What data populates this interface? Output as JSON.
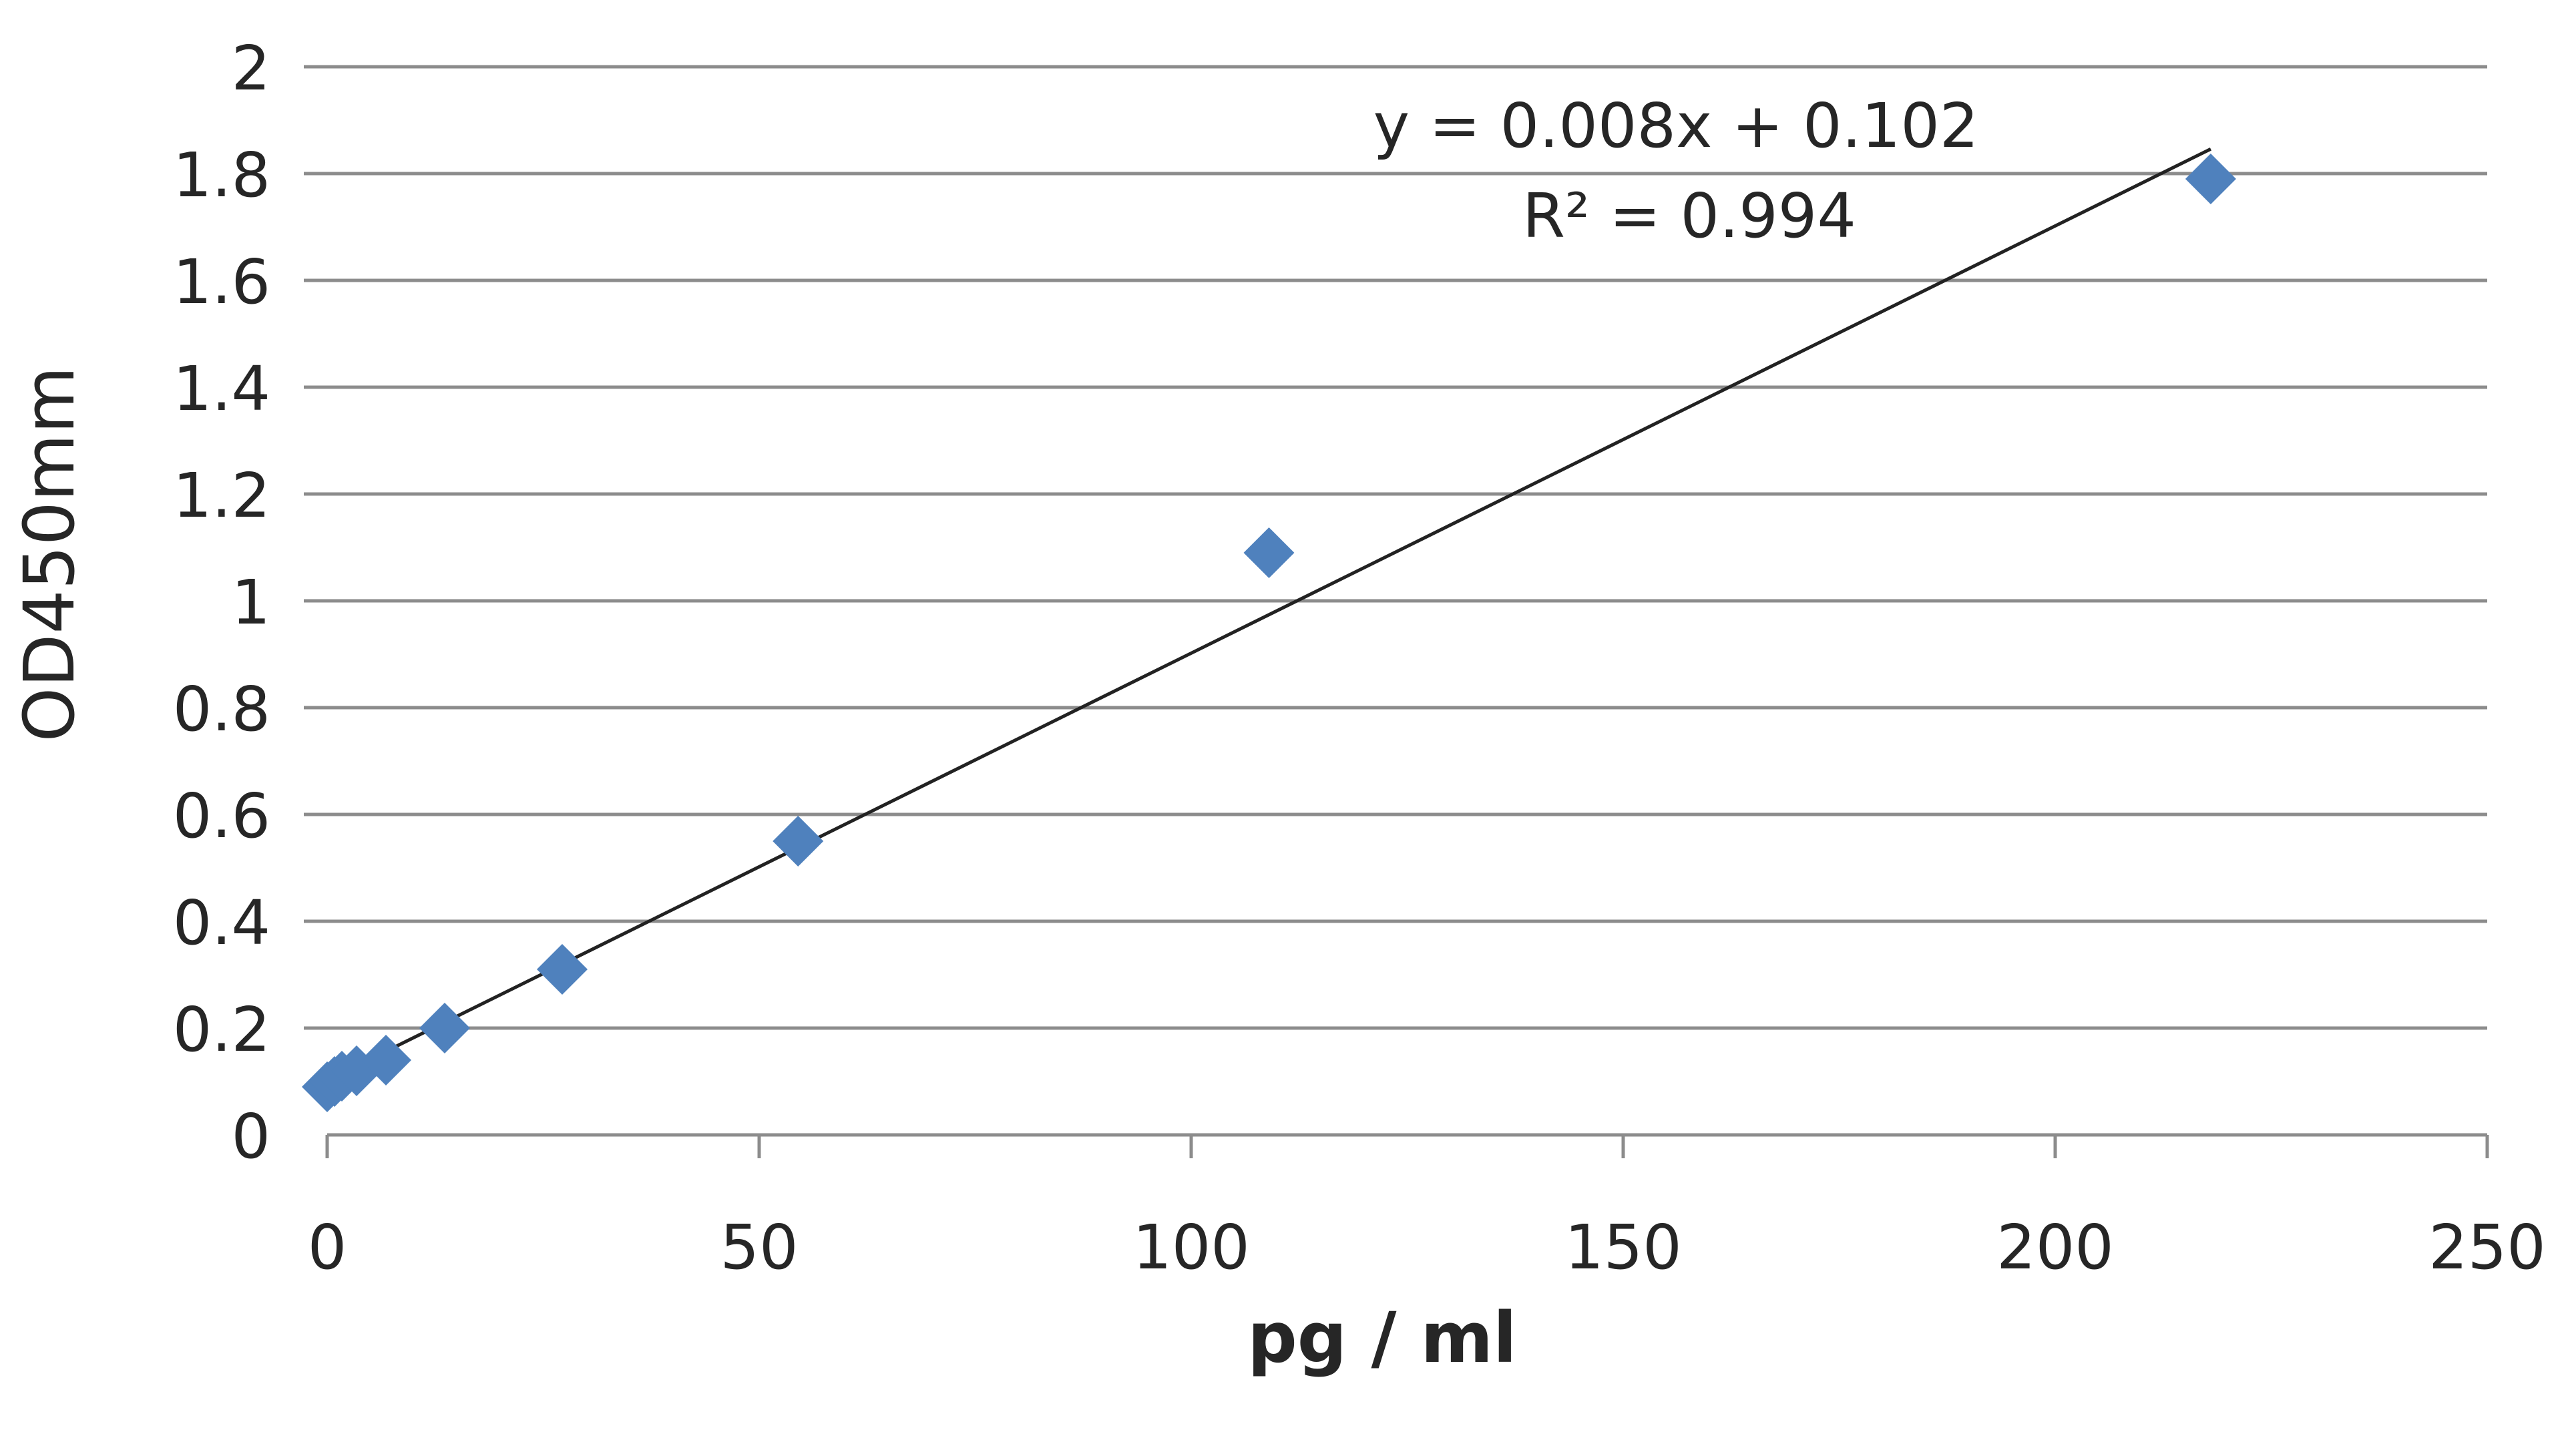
{
  "chart_data": {
    "type": "scatter",
    "title": "",
    "xlabel": "pg / ml",
    "ylabel": "OD450mm",
    "xlim": [
      0,
      250
    ],
    "ylim": [
      0,
      2
    ],
    "x_ticks": [
      0,
      50,
      100,
      150,
      200,
      250
    ],
    "y_ticks": [
      0,
      0.2,
      0.4,
      0.6,
      0.8,
      1,
      1.2,
      1.4,
      1.6,
      1.8,
      2
    ],
    "x_tick_labels": [
      "0",
      "50",
      "100",
      "150",
      "200",
      "250"
    ],
    "y_tick_labels": [
      "0",
      "0.2",
      "0.4",
      "0.6",
      "0.8",
      "1",
      "1.2",
      "1.4",
      "1.6",
      "1.8",
      "2"
    ],
    "grid": "horizontal",
    "legend": "none",
    "series": [
      {
        "marker": "diamond",
        "color": "#4F81BD",
        "points": [
          {
            "x": 0,
            "y": 0.09
          },
          {
            "x": 0.85,
            "y": 0.1
          },
          {
            "x": 1.7,
            "y": 0.11
          },
          {
            "x": 3.4,
            "y": 0.12
          },
          {
            "x": 6.8,
            "y": 0.14
          },
          {
            "x": 13.6,
            "y": 0.2
          },
          {
            "x": 27.2,
            "y": 0.31
          },
          {
            "x": 54.5,
            "y": 0.55
          },
          {
            "x": 109,
            "y": 1.09
          },
          {
            "x": 218,
            "y": 1.79
          }
        ]
      }
    ],
    "trendline": {
      "type": "linear",
      "slope": 0.008,
      "intercept": 0.102,
      "x_range": [
        0,
        218
      ],
      "color": "#222222"
    },
    "annotations": {
      "equation": "y = 0.008x + 0.102",
      "r_squared": "R² = 0.994"
    },
    "colors": {
      "gridline": "#8c8c8c",
      "axis": "#8c8c8c",
      "text": "#262626",
      "marker": "#4F81BD"
    }
  }
}
